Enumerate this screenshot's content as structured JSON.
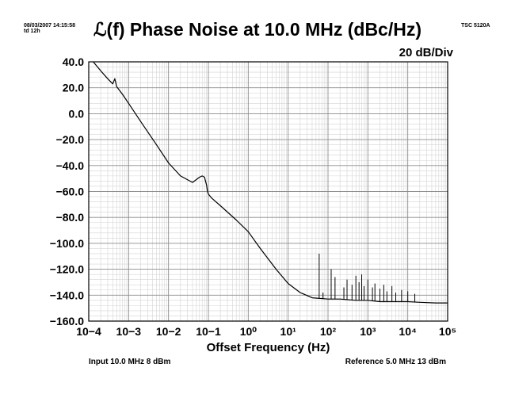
{
  "header": {
    "timestamp": "08/03/2007 14:15:58",
    "tau": "td 12h",
    "instrument": "TSC 5120A",
    "scale": "20 dB/Div"
  },
  "footer": {
    "input": "Input 10.0 MHz 8 dBm",
    "reference": "Reference 5.0 MHz 13 dBm"
  },
  "chart_data": {
    "type": "line",
    "title": "ℒ(f) Phase Noise at 10.0 MHz (dBc/Hz)",
    "xlabel": "Offset Frequency (Hz)",
    "ylabel": "",
    "x_scale": "log",
    "xlim": [
      0.0001,
      100000
    ],
    "ylim": [
      -160,
      40
    ],
    "x_ticks": [
      {
        "value": 0.0001,
        "label": "10−4"
      },
      {
        "value": 0.001,
        "label": "10−3"
      },
      {
        "value": 0.01,
        "label": "10−2"
      },
      {
        "value": 0.1,
        "label": "10−1"
      },
      {
        "value": 1,
        "label": "10⁰"
      },
      {
        "value": 10,
        "label": "10¹"
      },
      {
        "value": 100,
        "label": "10²"
      },
      {
        "value": 1000,
        "label": "10³"
      },
      {
        "value": 10000,
        "label": "10⁴"
      },
      {
        "value": 100000,
        "label": "10⁵"
      }
    ],
    "y_ticks": [
      40,
      20,
      0,
      -20,
      -40,
      -60,
      -80,
      -100,
      -120,
      -140,
      -160
    ],
    "y_tick_labels": [
      "40.0",
      "20.0",
      "0.0",
      "−20.0",
      "−40.0",
      "−60.0",
      "−80.0",
      "−100.0",
      "−120.0",
      "−140.0",
      "−160.0"
    ],
    "grid": true,
    "series": [
      {
        "color": "#000000",
        "x": [
          0.00013,
          0.0002,
          0.0003,
          0.0004,
          0.00045,
          0.0005,
          0.0007,
          0.001,
          0.002,
          0.005,
          0.01,
          0.02,
          0.04,
          0.06,
          0.07,
          0.08,
          0.09,
          0.095,
          0.1,
          0.12,
          0.2,
          0.5,
          1,
          2,
          5,
          10,
          20,
          40,
          100,
          200,
          500,
          1000,
          2000,
          5000,
          10000,
          20000,
          50000,
          100000
        ],
        "y": [
          40,
          33,
          27,
          23,
          27,
          21,
          15,
          8,
          -6,
          -24,
          -38,
          -48,
          -53,
          -49,
          -48,
          -49,
          -55,
          -60,
          -62,
          -65,
          -71,
          -82,
          -91,
          -104,
          -120,
          -131,
          -138,
          -142,
          -143,
          -143,
          -144,
          -144,
          -145,
          -145,
          -145,
          -145.5,
          -146,
          -146
        ]
      }
    ],
    "spurs": [
      {
        "x": 60,
        "y": -108
      },
      {
        "x": 75,
        "y": -138
      },
      {
        "x": 120,
        "y": -120
      },
      {
        "x": 150,
        "y": -126
      },
      {
        "x": 250,
        "y": -134
      },
      {
        "x": 300,
        "y": -128
      },
      {
        "x": 400,
        "y": -132
      },
      {
        "x": 500,
        "y": -125
      },
      {
        "x": 600,
        "y": -130
      },
      {
        "x": 700,
        "y": -124
      },
      {
        "x": 800,
        "y": -133
      },
      {
        "x": 1000,
        "y": -128
      },
      {
        "x": 1300,
        "y": -134
      },
      {
        "x": 1500,
        "y": -131
      },
      {
        "x": 2000,
        "y": -135
      },
      {
        "x": 2500,
        "y": -132
      },
      {
        "x": 3000,
        "y": -137
      },
      {
        "x": 4000,
        "y": -133
      },
      {
        "x": 5000,
        "y": -138
      },
      {
        "x": 7000,
        "y": -136
      },
      {
        "x": 10000,
        "y": -137
      },
      {
        "x": 15000,
        "y": -139
      }
    ]
  }
}
